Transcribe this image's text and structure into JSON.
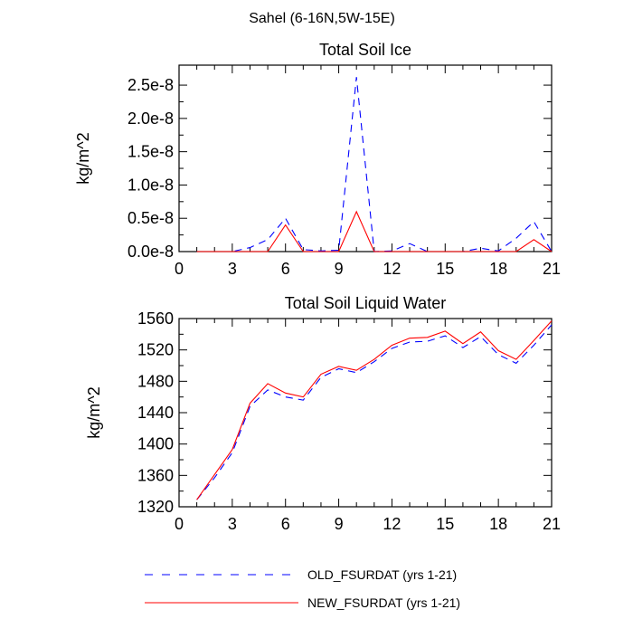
{
  "figure": {
    "title": "Sahel (6-16N,5W-15E)"
  },
  "chart_data": [
    {
      "type": "line",
      "title": "Total Soil Ice",
      "xlabel": "",
      "ylabel": "kg/m^2",
      "xlim": [
        0,
        21
      ],
      "ylim": [
        0,
        2.8e-08
      ],
      "xticks": [
        0,
        3,
        6,
        9,
        12,
        15,
        18,
        21
      ],
      "xtick_labels": [
        "0",
        "3",
        "6",
        "9",
        "12",
        "15",
        "18",
        "21"
      ],
      "yticks": [
        0,
        5e-09,
        1e-08,
        1.5e-08,
        2e-08,
        2.5e-08
      ],
      "ytick_labels": [
        "0.0e-8",
        "0.5e-8",
        "1.0e-8",
        "1.5e-8",
        "2.0e-8",
        "2.5e-8"
      ],
      "x": [
        1,
        2,
        3,
        4,
        5,
        6,
        7,
        8,
        9,
        10,
        11,
        12,
        13,
        14,
        15,
        16,
        17,
        18,
        19,
        20,
        21
      ],
      "series": [
        {
          "name": "OLD_FSURDAT (yrs 1-21)",
          "color": "#0000ff",
          "dash": "dashed",
          "values": [
            0,
            0,
            0,
            6e-10,
            1.8e-09,
            5e-09,
            3e-10,
            1e-10,
            2e-10,
            2.62e-08,
            0,
            1e-10,
            1.2e-09,
            0,
            0,
            0,
            5e-10,
            1e-10,
            2e-09,
            4.5e-09,
            0
          ]
        },
        {
          "name": "NEW_FSURDAT (yrs 1-21)",
          "color": "#ff0000",
          "dash": "solid",
          "values": [
            0,
            0,
            0,
            0,
            0,
            4e-09,
            0,
            0,
            0,
            6e-09,
            0,
            0,
            0,
            0,
            0,
            0,
            0,
            0,
            0,
            1.8e-09,
            0
          ]
        }
      ]
    },
    {
      "type": "line",
      "title": "Total Soil Liquid Water",
      "xlabel": "",
      "ylabel": "kg/m^2",
      "xlim": [
        0,
        21
      ],
      "ylim": [
        1320,
        1560
      ],
      "xticks": [
        0,
        3,
        6,
        9,
        12,
        15,
        18,
        21
      ],
      "xtick_labels": [
        "0",
        "3",
        "6",
        "9",
        "12",
        "15",
        "18",
        "21"
      ],
      "yticks": [
        1320,
        1360,
        1400,
        1440,
        1480,
        1520,
        1560
      ],
      "ytick_labels": [
        "1320",
        "1360",
        "1400",
        "1440",
        "1480",
        "1520",
        "1560"
      ],
      "x": [
        1,
        2,
        3,
        4,
        5,
        6,
        7,
        8,
        9,
        10,
        11,
        12,
        13,
        14,
        15,
        16,
        17,
        18,
        19,
        20,
        21
      ],
      "series": [
        {
          "name": "OLD_FSURDAT (yrs 1-21)",
          "color": "#0000ff",
          "dash": "dashed",
          "values": [
            1329,
            1357,
            1389,
            1448,
            1469,
            1460,
            1456,
            1485,
            1496,
            1491,
            1505,
            1522,
            1530,
            1531,
            1538,
            1523,
            1537,
            1514,
            1503,
            1526,
            1552
          ]
        },
        {
          "name": "NEW_FSURDAT (yrs 1-21)",
          "color": "#ff0000",
          "dash": "solid",
          "values": [
            1329,
            1361,
            1393,
            1452,
            1477,
            1465,
            1460,
            1489,
            1499,
            1494,
            1508,
            1526,
            1535,
            1536,
            1544,
            1528,
            1543,
            1519,
            1508,
            1532,
            1557
          ]
        }
      ]
    }
  ],
  "legend": {
    "placement": "bottom",
    "items": [
      {
        "label": "OLD_FSURDAT (yrs 1-21)",
        "color": "#0000ff",
        "dash": "dashed"
      },
      {
        "label": "NEW_FSURDAT (yrs 1-21)",
        "color": "#ff0000",
        "dash": "solid"
      }
    ]
  }
}
